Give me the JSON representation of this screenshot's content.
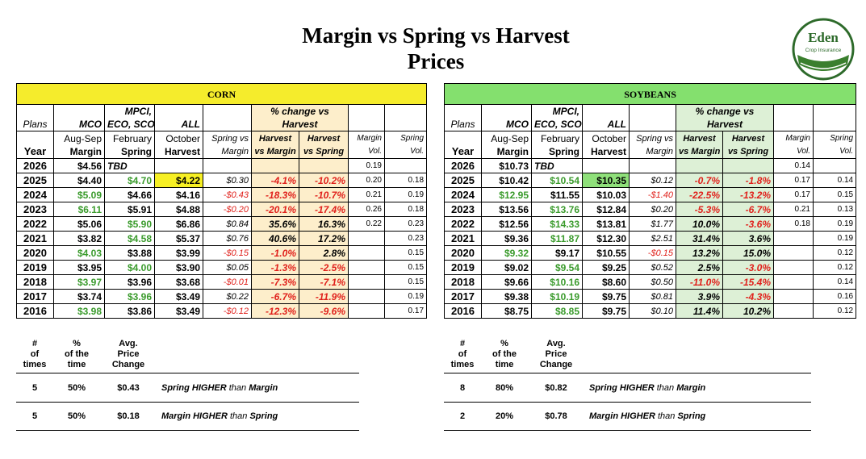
{
  "title": {
    "line1": "Margin vs Spring vs Harvest",
    "line2": "Prices"
  },
  "logo": {
    "name": "Eden",
    "sub": "Crop Insurance"
  },
  "colors": {
    "corn_banner": "#f5ec2c",
    "soy_banner": "#84e06e",
    "green_text": "#3a9b2c",
    "red_text": "#e0201b"
  },
  "corn": {
    "banner": "CORN",
    "plans": [
      "Plans",
      "MCO",
      "MPCI,",
      "ECO, SCO",
      "ALL",
      "% change vs",
      "Harvest"
    ],
    "headers": [
      "Year",
      "Aug-Sep",
      "Margin",
      "February",
      "Spring",
      "October",
      "Harvest",
      "Spring vs",
      "Margin",
      "Harvest",
      "vs Margin",
      "Harvest",
      "vs Spring",
      "Margin",
      "Vol.",
      "Spring",
      "Vol."
    ],
    "rows": [
      [
        "2026",
        "$4.56",
        "TBD",
        "",
        "",
        "",
        "",
        "0.19",
        ""
      ],
      [
        "2025",
        "$4.40",
        "$4.70",
        "$4.22",
        "$0.30",
        "-4.1%",
        "-10.2%",
        "0.20",
        "0.18"
      ],
      [
        "2024",
        "$5.09",
        "$4.66",
        "$4.16",
        "-$0.43",
        "-18.3%",
        "-10.7%",
        "0.21",
        "0.19"
      ],
      [
        "2023",
        "$6.11",
        "$5.91",
        "$4.88",
        "-$0.20",
        "-20.1%",
        "-17.4%",
        "0.26",
        "0.18"
      ],
      [
        "2022",
        "$5.06",
        "$5.90",
        "$6.86",
        "$0.84",
        "35.6%",
        "16.3%",
        "0.22",
        "0.23"
      ],
      [
        "2021",
        "$3.82",
        "$4.58",
        "$5.37",
        "$0.76",
        "40.6%",
        "17.2%",
        "",
        "0.23"
      ],
      [
        "2020",
        "$4.03",
        "$3.88",
        "$3.99",
        "-$0.15",
        "-1.0%",
        "2.8%",
        "",
        "0.15"
      ],
      [
        "2019",
        "$3.95",
        "$4.00",
        "$3.90",
        "$0.05",
        "-1.3%",
        "-2.5%",
        "",
        "0.15"
      ],
      [
        "2018",
        "$3.97",
        "$3.96",
        "$3.68",
        "-$0.01",
        "-7.3%",
        "-7.1%",
        "",
        "0.15"
      ],
      [
        "2017",
        "$3.74",
        "$3.96",
        "$3.49",
        "$0.22",
        "-6.7%",
        "-11.9%",
        "",
        "0.19"
      ],
      [
        "2016",
        "$3.98",
        "$3.86",
        "$3.49",
        "-$0.12",
        "-12.3%",
        "-9.6%",
        "",
        "0.17"
      ]
    ],
    "stats_head": [
      "#",
      "of",
      "times",
      "%",
      "of the",
      "time",
      "Avg.",
      "Price",
      "Change"
    ],
    "stats": [
      {
        "count": "5",
        "pct": "50%",
        "avg": "$0.43",
        "strong1": "Spring HIGHER",
        "mid": " than ",
        "strong2": "Margin"
      },
      {
        "count": "5",
        "pct": "50%",
        "avg": "$0.18",
        "strong1": "Margin HIGHER",
        "mid": " than ",
        "strong2": "Spring"
      }
    ]
  },
  "soy": {
    "banner": "SOYBEANS",
    "plans": [
      "Plans",
      "MCO",
      "MPCI,",
      "ECO, SCO",
      "ALL",
      "% change vs",
      "Harvest"
    ],
    "headers": [
      "Year",
      "Aug-Sep",
      "Margin",
      "February",
      "Spring",
      "October",
      "Harvest",
      "Spring vs",
      "Margin",
      "Harvest",
      "vs Margin",
      "Harvest",
      "vs Spring",
      "Margin",
      "Vol.",
      "Spring",
      "Vol."
    ],
    "rows": [
      [
        "2026",
        "$10.73",
        "TBD",
        "",
        "",
        "",
        "",
        "0.14",
        ""
      ],
      [
        "2025",
        "$10.42",
        "$10.54",
        "$10.35",
        "$0.12",
        "-0.7%",
        "-1.8%",
        "0.17",
        "0.14"
      ],
      [
        "2024",
        "$12.95",
        "$11.55",
        "$10.03",
        "-$1.40",
        "-22.5%",
        "-13.2%",
        "0.17",
        "0.15"
      ],
      [
        "2023",
        "$13.56",
        "$13.76",
        "$12.84",
        "$0.20",
        "-5.3%",
        "-6.7%",
        "0.21",
        "0.13"
      ],
      [
        "2022",
        "$12.56",
        "$14.33",
        "$13.81",
        "$1.77",
        "10.0%",
        "-3.6%",
        "0.18",
        "0.19"
      ],
      [
        "2021",
        "$9.36",
        "$11.87",
        "$12.30",
        "$2.51",
        "31.4%",
        "3.6%",
        "",
        "0.19"
      ],
      [
        "2020",
        "$9.32",
        "$9.17",
        "$10.55",
        "-$0.15",
        "13.2%",
        "15.0%",
        "",
        "0.12"
      ],
      [
        "2019",
        "$9.02",
        "$9.54",
        "$9.25",
        "$0.52",
        "2.5%",
        "-3.0%",
        "",
        "0.12"
      ],
      [
        "2018",
        "$9.66",
        "$10.16",
        "$8.60",
        "$0.50",
        "-11.0%",
        "-15.4%",
        "",
        "0.14"
      ],
      [
        "2017",
        "$9.38",
        "$10.19",
        "$9.75",
        "$0.81",
        "3.9%",
        "-4.3%",
        "",
        "0.16"
      ],
      [
        "2016",
        "$8.75",
        "$8.85",
        "$9.75",
        "$0.10",
        "11.4%",
        "10.2%",
        "",
        "0.12"
      ]
    ],
    "stats_head": [
      "#",
      "of",
      "times",
      "%",
      "of the",
      "time",
      "Avg.",
      "Price",
      "Change"
    ],
    "stats": [
      {
        "count": "8",
        "pct": "80%",
        "avg": "$0.82",
        "strong1": "Spring HIGHER",
        "mid": " than ",
        "strong2": "Margin"
      },
      {
        "count": "2",
        "pct": "20%",
        "avg": "$0.78",
        "strong1": "Margin HIGHER",
        "mid": " than ",
        "strong2": "Spring"
      }
    ]
  }
}
